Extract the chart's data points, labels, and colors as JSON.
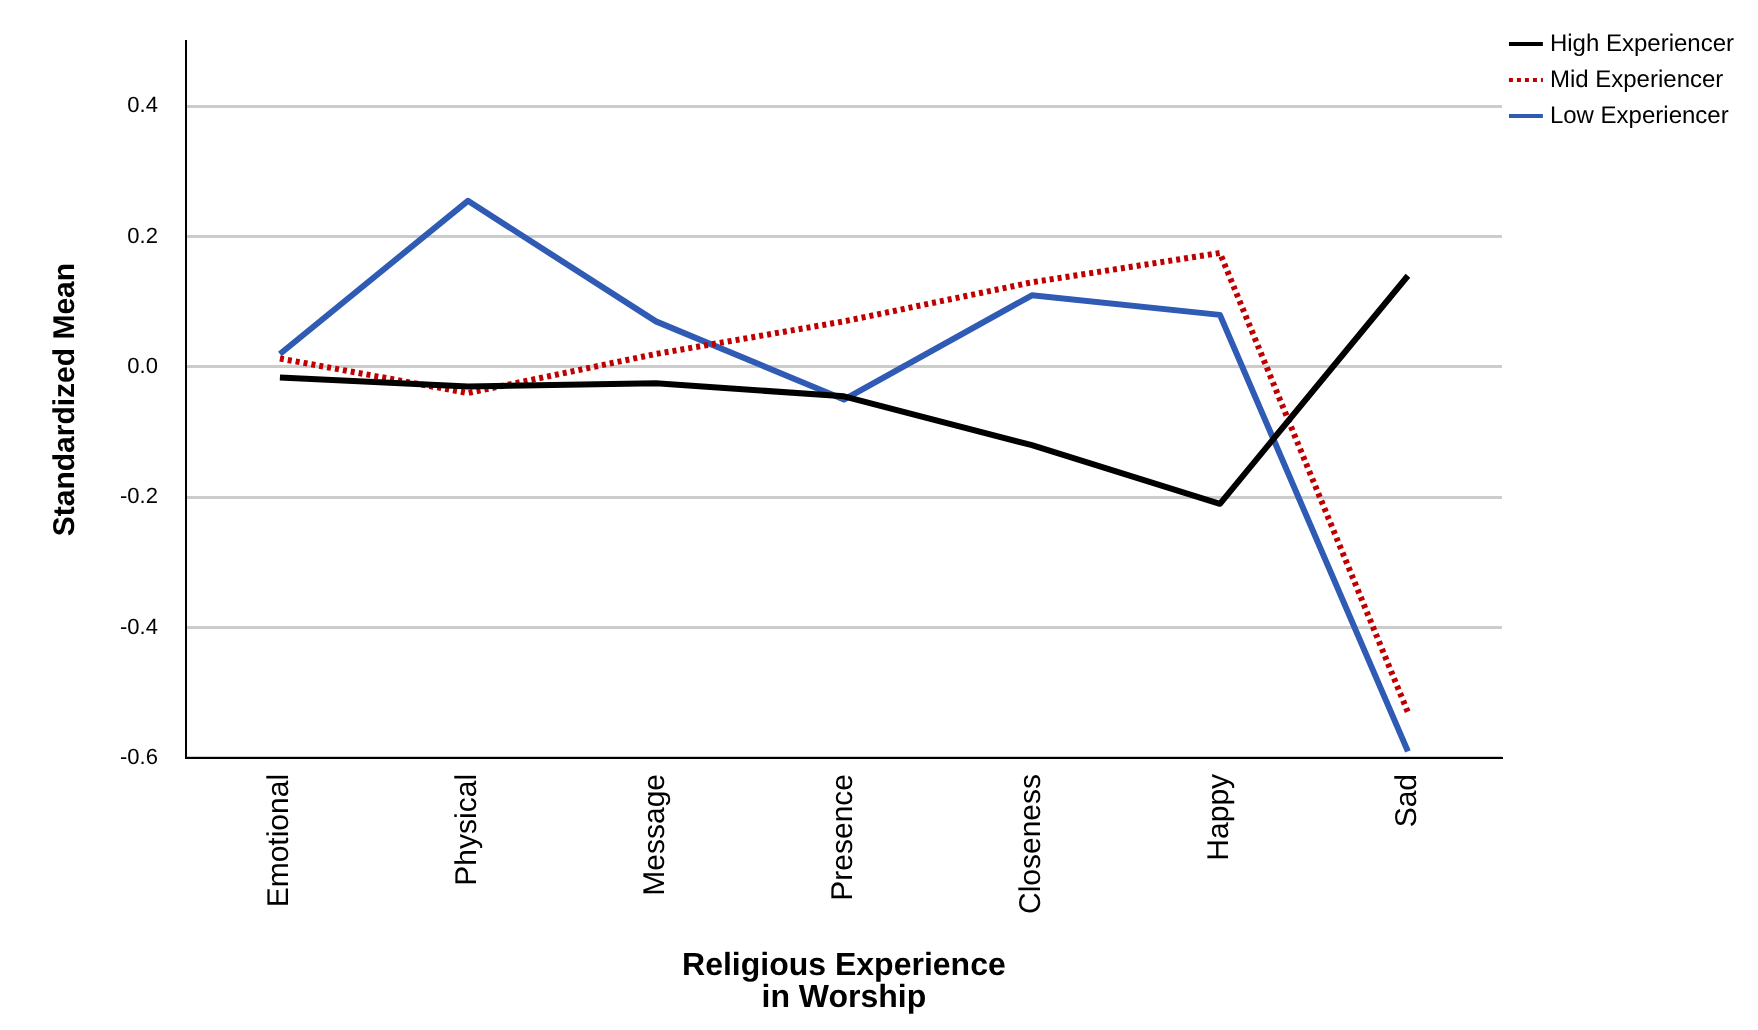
{
  "chart_data": {
    "type": "line",
    "xlabel": "Religious Experience\nin Worship",
    "ylabel": "Standardized Mean",
    "categories": [
      "Emotional",
      "Physical",
      "Message",
      "Presence",
      "Closeness",
      "Happy",
      "Sad"
    ],
    "series": [
      {
        "name": "High Experiencer",
        "color": "#000000",
        "line_style": "solid",
        "values": [
          -0.016,
          -0.03,
          -0.025,
          -0.045,
          -0.12,
          -0.21,
          0.14
        ]
      },
      {
        "name": "Mid Experiencer",
        "color": "#c00000",
        "line_style": "dotted",
        "values": [
          0.013,
          -0.04,
          0.02,
          0.07,
          0.13,
          0.175,
          -0.53
        ]
      },
      {
        "name": "Low Experiencer",
        "color": "#2f5bb5",
        "line_style": "solid",
        "values": [
          0.02,
          0.255,
          0.07,
          -0.05,
          0.11,
          0.08,
          -0.59
        ]
      }
    ],
    "ylim": [
      -0.6,
      0.5
    ],
    "yticks": [
      {
        "value": -0.6,
        "label": "-0.6"
      },
      {
        "value": -0.4,
        "label": "-0.4"
      },
      {
        "value": -0.2,
        "label": "-0.2"
      },
      {
        "value": 0,
        "label": "0.0"
      },
      {
        "value": 0.2,
        "label": "0.2"
      },
      {
        "value": 0.4,
        "label": "0.4"
      }
    ],
    "grid": "y",
    "legend": "top right",
    "marker": "none"
  }
}
